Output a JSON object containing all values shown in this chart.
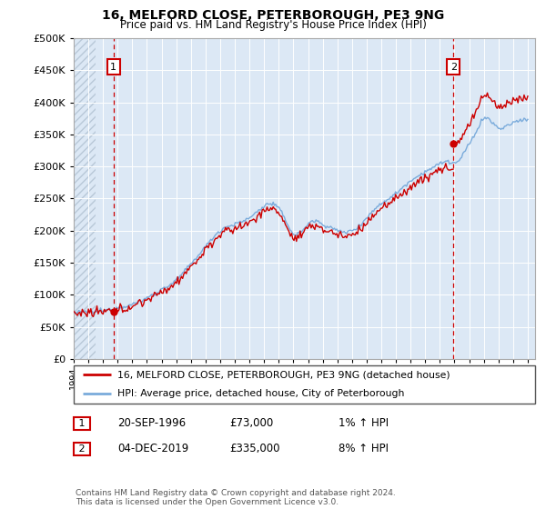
{
  "title": "16, MELFORD CLOSE, PETERBOROUGH, PE3 9NG",
  "subtitle": "Price paid vs. HM Land Registry's House Price Index (HPI)",
  "legend_line1": "16, MELFORD CLOSE, PETERBOROUGH, PE3 9NG (detached house)",
  "legend_line2": "HPI: Average price, detached house, City of Peterborough",
  "sale1_date": "20-SEP-1996",
  "sale1_price": "£73,000",
  "sale1_hpi": "1% ↑ HPI",
  "sale1_date_num": 1996.72,
  "sale1_price_val": 73000,
  "sale2_date": "04-DEC-2019",
  "sale2_price": "£335,000",
  "sale2_hpi": "8% ↑ HPI",
  "sale2_date_num": 2019.92,
  "sale2_price_val": 335000,
  "footer": "Contains HM Land Registry data © Crown copyright and database right 2024.\nThis data is licensed under the Open Government Licence v3.0.",
  "ylim": [
    0,
    500000
  ],
  "yticks": [
    0,
    50000,
    100000,
    150000,
    200000,
    250000,
    300000,
    350000,
    400000,
    450000,
    500000
  ],
  "hpi_color": "#7aabdb",
  "sale_color": "#cc0000",
  "grid_color": "#c8d8e8",
  "plot_bg": "#dce8f5",
  "vline_color": "#cc0000",
  "hatch_color": "#b8c8d8",
  "xlim_left": 1994.0,
  "xlim_right": 2025.5
}
